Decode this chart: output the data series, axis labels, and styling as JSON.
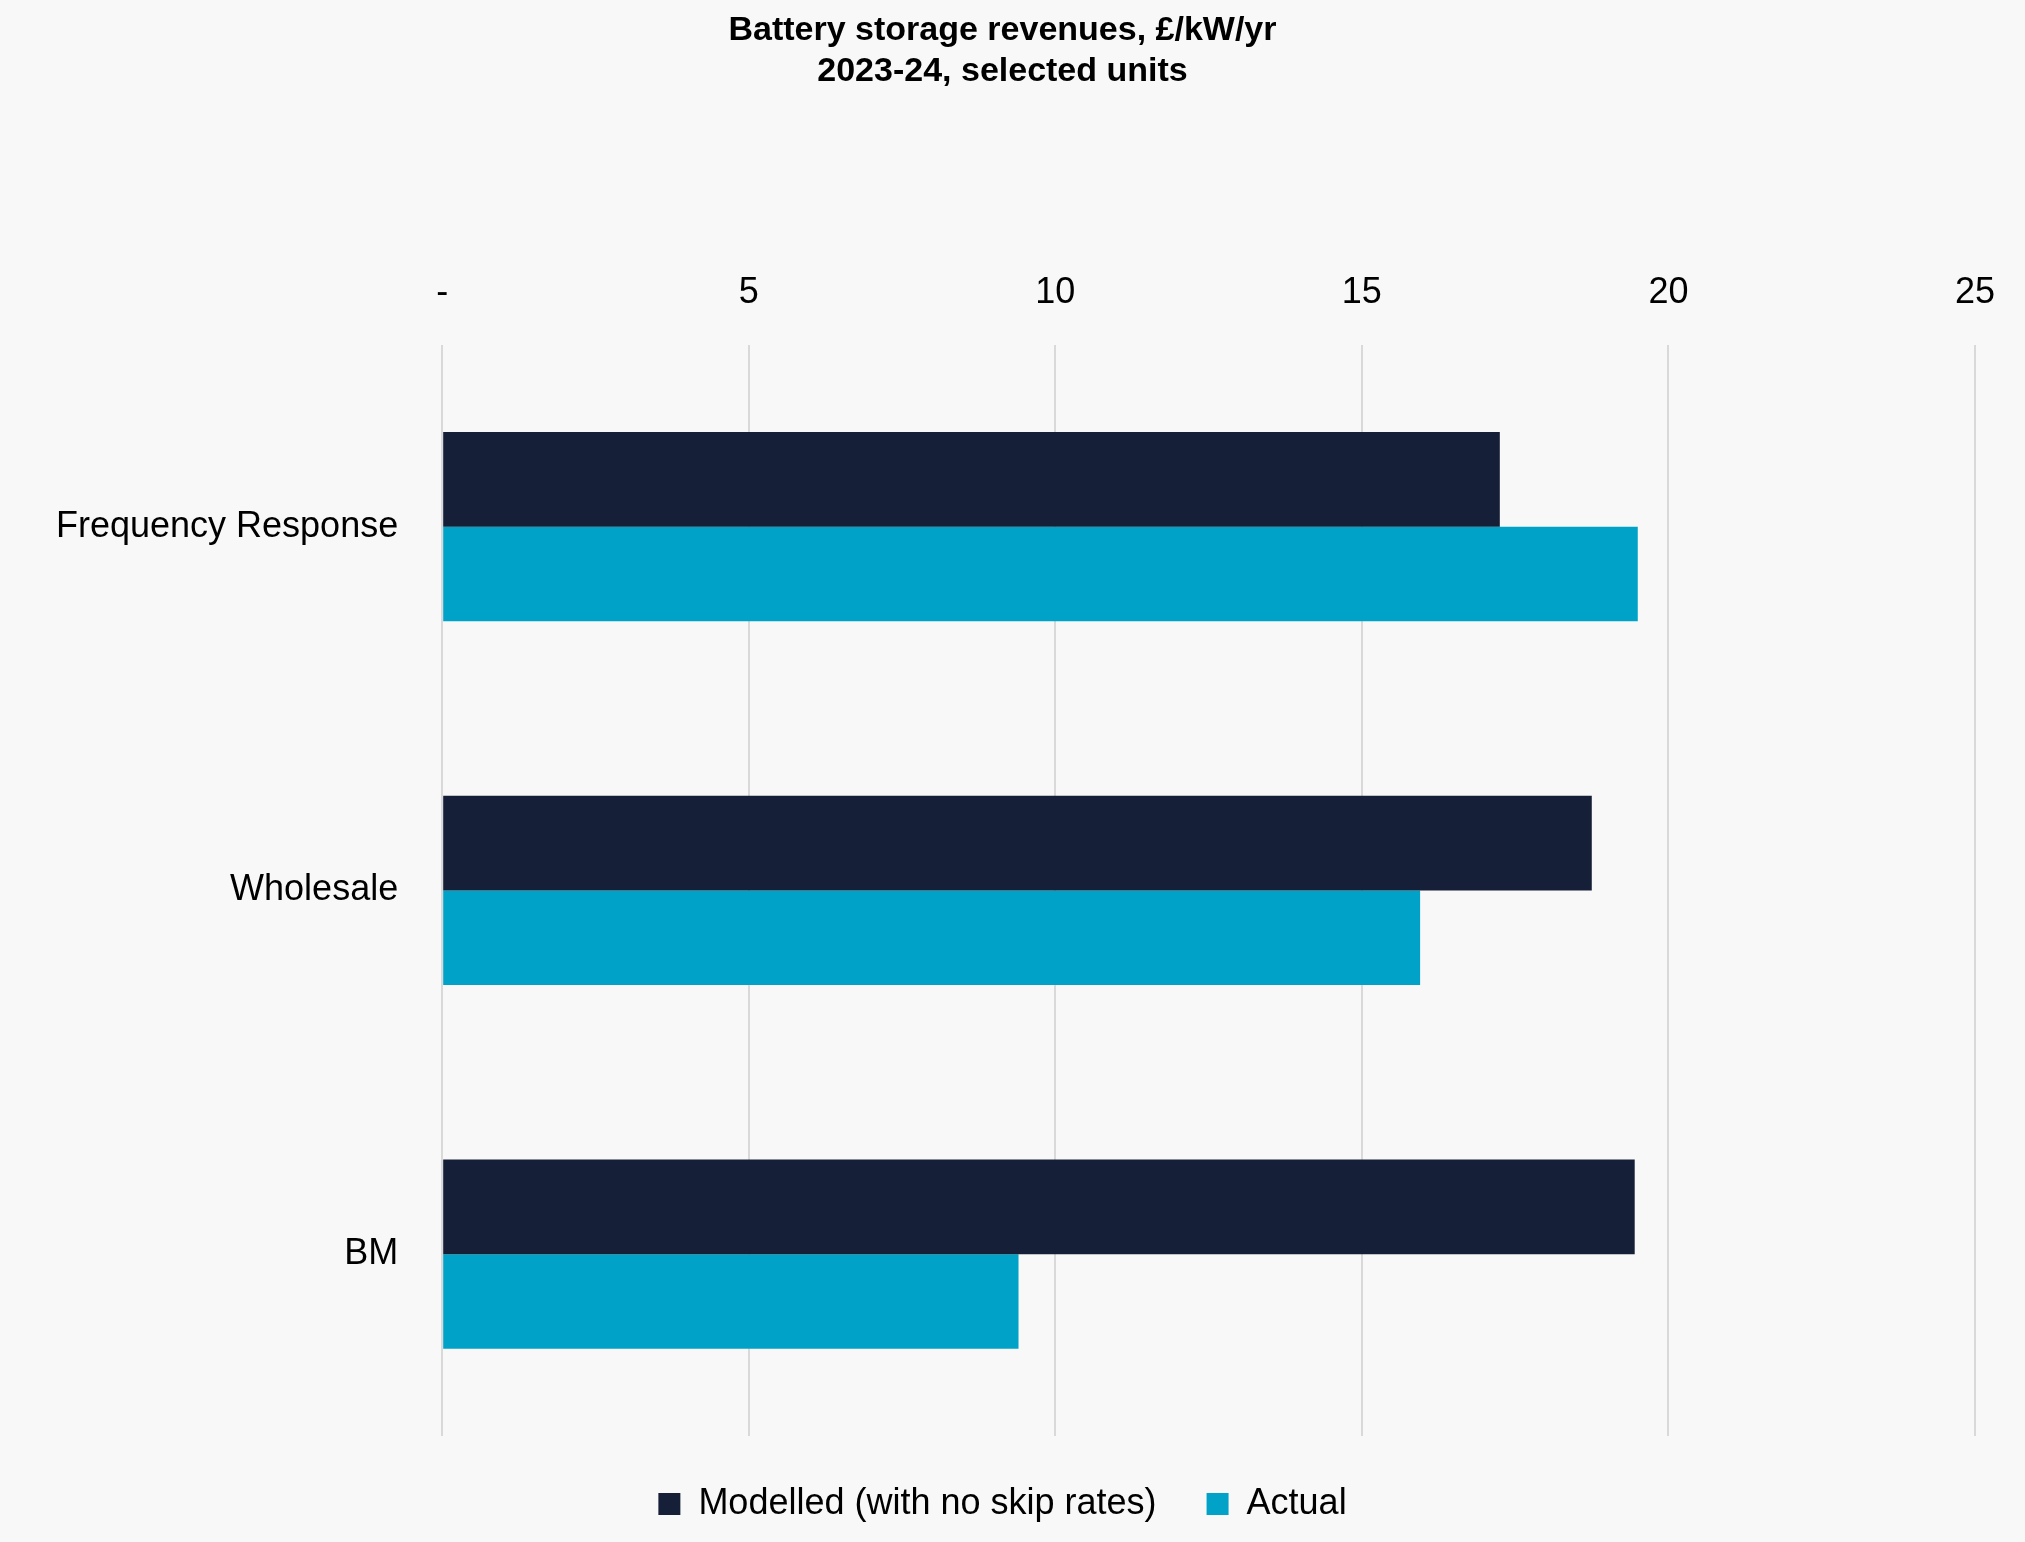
{
  "chart_data": {
    "type": "bar",
    "orientation": "horizontal",
    "title": "Battery storage revenues, £/kW/yr",
    "subtitle": "2023-24, selected units",
    "categories": [
      "Frequency Response",
      "Wholesale",
      "BM"
    ],
    "series": [
      {
        "name": "Modelled (with no skip rates)",
        "color": "#151f37",
        "values": [
          17.25,
          18.75,
          19.45
        ]
      },
      {
        "name": "Actual",
        "color": "#00a3c7",
        "values": [
          19.5,
          15.95,
          9.4
        ]
      }
    ],
    "xlim": [
      0,
      25
    ],
    "xticks": [
      {
        "value": 0,
        "label": "-"
      },
      5,
      10,
      15,
      20,
      25
    ],
    "grid": "x",
    "legend": "bottom"
  }
}
